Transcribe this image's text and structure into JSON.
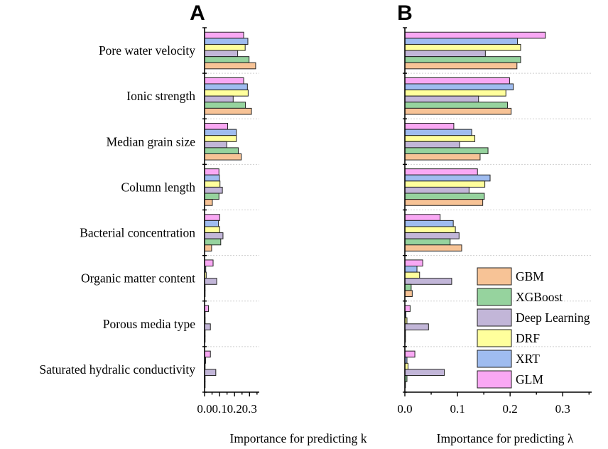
{
  "chart_data": [
    {
      "panel_label": "A",
      "type": "bar",
      "orientation": "horizontal",
      "xlabel": "Importance for predicting k",
      "xlim": [
        0,
        0.365
      ],
      "xticks": [
        0.0,
        0.1,
        0.2,
        0.3
      ],
      "xtick_labels": [
        "0.0",
        "0.1",
        "0.2",
        "0.3"
      ],
      "categories": [
        "Pore water velocity",
        "Ionic strength",
        "Median grain size",
        "Column length",
        "Bacterial concentration",
        "Organic matter content",
        "Porous media type",
        "Saturated hydralic conductivity"
      ],
      "series": [
        {
          "name": "GBM",
          "values": [
            0.341,
            0.313,
            0.245,
            0.052,
            0.047,
            0.001,
            0.001,
            0.001
          ]
        },
        {
          "name": "XGBoost",
          "values": [
            0.297,
            0.273,
            0.225,
            0.096,
            0.108,
            0.001,
            0.001,
            0.001
          ]
        },
        {
          "name": "Deep Learning",
          "values": [
            0.221,
            0.191,
            0.148,
            0.119,
            0.123,
            0.081,
            0.039,
            0.075
          ]
        },
        {
          "name": "DRF",
          "values": [
            0.271,
            0.291,
            0.212,
            0.103,
            0.101,
            0.011,
            0.004,
            0.001
          ]
        },
        {
          "name": "XRT",
          "values": [
            0.289,
            0.286,
            0.212,
            0.099,
            0.093,
            0.008,
            0.002,
            0.007
          ]
        },
        {
          "name": "GLM",
          "values": [
            0.261,
            0.261,
            0.154,
            0.096,
            0.101,
            0.057,
            0.026,
            0.039
          ]
        }
      ]
    },
    {
      "panel_label": "B",
      "type": "bar",
      "orientation": "horizontal",
      "xlabel": "Importance for predicting λ",
      "xlim": [
        0,
        0.355
      ],
      "xticks": [
        0.0,
        0.1,
        0.2,
        0.3
      ],
      "xtick_labels": [
        "0.0",
        "0.1",
        "0.2",
        "0.3"
      ],
      "categories": [
        "Pore water velocity",
        "Ionic strength",
        "Median grain size",
        "Column length",
        "Bacterial concentration",
        "Organic matter content",
        "Porous media type",
        "Saturated hydralic conductivity"
      ],
      "series": [
        {
          "name": "GBM",
          "values": [
            0.213,
            0.202,
            0.143,
            0.148,
            0.108,
            0.014,
            0.001,
            0.001
          ]
        },
        {
          "name": "XGBoost",
          "values": [
            0.22,
            0.195,
            0.158,
            0.151,
            0.086,
            0.012,
            0.001,
            0.004
          ]
        },
        {
          "name": "Deep Learning",
          "values": [
            0.153,
            0.14,
            0.104,
            0.122,
            0.103,
            0.089,
            0.045,
            0.075
          ]
        },
        {
          "name": "DRF",
          "values": [
            0.22,
            0.192,
            0.133,
            0.152,
            0.096,
            0.028,
            0.004,
            0.006
          ]
        },
        {
          "name": "XRT",
          "values": [
            0.214,
            0.206,
            0.127,
            0.162,
            0.092,
            0.023,
            0.002,
            0.004
          ]
        },
        {
          "name": "GLM",
          "values": [
            0.267,
            0.199,
            0.093,
            0.138,
            0.067,
            0.034,
            0.01,
            0.019
          ]
        }
      ]
    }
  ],
  "legend": {
    "position": "bottom-right",
    "entries": [
      "GBM",
      "XGBoost",
      "Deep Learning",
      "DRF",
      "XRT",
      "GLM"
    ]
  },
  "colors": {
    "GBM": "#f7c396",
    "XGBoost": "#96d39e",
    "Deep Learning": "#c2b6d8",
    "DRF": "#ffff9c",
    "XRT": "#9fbcf0",
    "GLM": "#f9a8f4"
  }
}
